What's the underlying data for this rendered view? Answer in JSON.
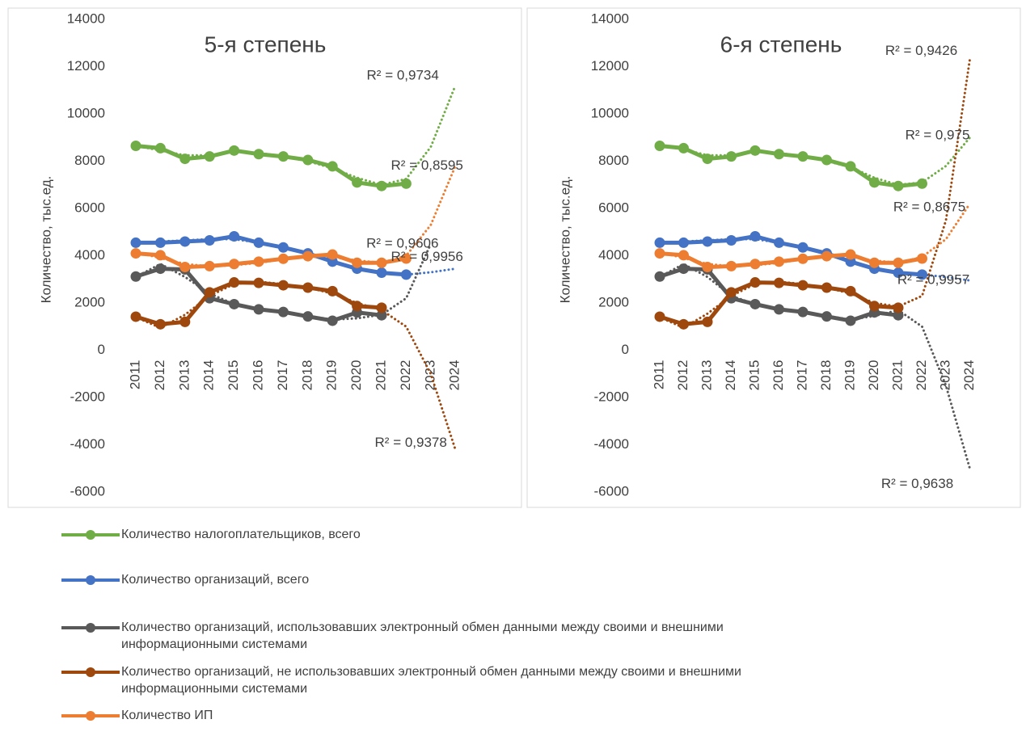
{
  "chart_data": [
    {
      "type": "line",
      "title": "5-я степень",
      "y_label": "Количество, тыс.ед.",
      "categories": [
        "2011",
        "2012",
        "2013",
        "2014",
        "2015",
        "2016",
        "2017",
        "2018",
        "2019",
        "2020",
        "2021",
        "2022",
        "2023",
        "2024"
      ],
      "ylim": [
        -6000,
        14000
      ],
      "yticks": [
        -6000,
        -4000,
        -2000,
        0,
        2000,
        4000,
        6000,
        8000,
        10000,
        12000,
        14000
      ],
      "series": [
        {
          "name": "Количество налогоплательщиков, всего",
          "color": "#70ad47",
          "values": [
            8650,
            8550,
            8100,
            8200,
            8450,
            8300,
            8200,
            8050,
            7780,
            7100,
            6950,
            7050,
            null,
            null
          ]
        },
        {
          "name": "Количество организаций, всего",
          "color": "#4472c4",
          "values": [
            4550,
            4550,
            4600,
            4650,
            4820,
            4550,
            4350,
            4100,
            3750,
            3450,
            3280,
            3200,
            null,
            null
          ]
        },
        {
          "name": "Количество организаций, использовавших электронный обмен данными между своими и внешними информационными системами",
          "color": "#595959",
          "values": [
            3120,
            3450,
            3420,
            2200,
            1950,
            1730,
            1620,
            1430,
            1250,
            1600,
            1480,
            null,
            null,
            null
          ]
        },
        {
          "name": "Количество организаций, не использовавших электронный обмен данными между своими и внешними информационными системами",
          "color": "#9e480e",
          "values": [
            1420,
            1100,
            1200,
            2450,
            2870,
            2850,
            2750,
            2650,
            2500,
            1870,
            1800,
            null,
            null,
            null
          ]
        },
        {
          "name": "Количество ИП",
          "color": "#ed7d31",
          "values": [
            4100,
            4020,
            3520,
            3560,
            3650,
            3750,
            3870,
            3980,
            4050,
            3700,
            3700,
            3880,
            null,
            null
          ]
        }
      ],
      "trendlines": [
        {
          "label": "R² = 0,9734",
          "values": [
            8650,
            8450,
            8250,
            8250,
            8400,
            8350,
            8200,
            8000,
            7700,
            7300,
            7000,
            7250,
            8600,
            11200
          ]
        },
        {
          "label": "R² = 0,9956",
          "values": [
            4500,
            4600,
            4650,
            4700,
            4700,
            4550,
            4350,
            4050,
            3750,
            3450,
            3250,
            3200,
            3300,
            3450
          ]
        },
        {
          "label": "R² = 0,9606",
          "values": [
            3100,
            3650,
            3100,
            2400,
            1950,
            1750,
            1620,
            1450,
            1300,
            1350,
            1500,
            2200,
            4500,
            null
          ]
        },
        {
          "label": "R² = 0,9378",
          "values": [
            1400,
            950,
            1500,
            2300,
            2800,
            2900,
            2800,
            2650,
            2400,
            2000,
            1700,
            1000,
            -1000,
            -4200
          ]
        },
        {
          "label": "R² = 0,8595",
          "values": [
            4150,
            3900,
            3650,
            3550,
            3600,
            3700,
            3850,
            3950,
            3950,
            3800,
            3700,
            4000,
            5300,
            7800
          ]
        }
      ]
    },
    {
      "type": "line",
      "title": "6-я степень",
      "y_label": "Количество, тыс.ед.",
      "categories": [
        "2011",
        "2012",
        "2013",
        "2014",
        "2015",
        "2016",
        "2017",
        "2018",
        "2019",
        "2020",
        "2021",
        "2022",
        "2023",
        "2024"
      ],
      "ylim": [
        -6000,
        14000
      ],
      "yticks": [
        -6000,
        -4000,
        -2000,
        0,
        2000,
        4000,
        6000,
        8000,
        10000,
        12000,
        14000
      ],
      "series": [
        {
          "name": "Количество налогоплательщиков, всего",
          "color": "#70ad47",
          "values": [
            8650,
            8550,
            8100,
            8200,
            8450,
            8300,
            8200,
            8050,
            7780,
            7100,
            6950,
            7050,
            null,
            null
          ]
        },
        {
          "name": "Количество организаций, всего",
          "color": "#4472c4",
          "values": [
            4550,
            4550,
            4600,
            4650,
            4820,
            4550,
            4350,
            4100,
            3750,
            3450,
            3280,
            3200,
            null,
            null
          ]
        },
        {
          "name": "Количество организаций, использовавших электронный обмен данными между своими и внешними информационными системами",
          "color": "#595959",
          "values": [
            3120,
            3450,
            3420,
            2200,
            1950,
            1730,
            1620,
            1430,
            1250,
            1600,
            1480,
            null,
            null,
            null
          ]
        },
        {
          "name": "Количество организаций, не использовавших электронный обмен данными между своими и внешними информационными системами",
          "color": "#9e480e",
          "values": [
            1420,
            1100,
            1200,
            2450,
            2870,
            2850,
            2750,
            2650,
            2500,
            1870,
            1800,
            null,
            null,
            null
          ]
        },
        {
          "name": "Количество ИП",
          "color": "#ed7d31",
          "values": [
            4100,
            4020,
            3520,
            3560,
            3650,
            3750,
            3870,
            3980,
            4050,
            3700,
            3700,
            3880,
            null,
            null
          ]
        }
      ],
      "trendlines": [
        {
          "label": "R² = 0,975",
          "values": [
            8650,
            8500,
            8250,
            8250,
            8400,
            8350,
            8200,
            8000,
            7750,
            7300,
            7000,
            7100,
            7800,
            9000
          ]
        },
        {
          "label": "R² = 0,9957",
          "values": [
            4500,
            4600,
            4650,
            4700,
            4700,
            4550,
            4350,
            4050,
            3750,
            3450,
            3250,
            3200,
            3100,
            2950
          ]
        },
        {
          "label": "R² = 0,9638",
          "values": [
            3100,
            3650,
            3100,
            2300,
            1950,
            1750,
            1600,
            1450,
            1300,
            1450,
            1700,
            1000,
            -1500,
            -5000
          ]
        },
        {
          "label": "R² = 0,9426",
          "values": [
            1400,
            950,
            1550,
            2300,
            2800,
            2900,
            2800,
            2650,
            2400,
            2000,
            1850,
            2300,
            5500,
            12300
          ]
        },
        {
          "label": "R² = 0,8675",
          "values": [
            4150,
            3900,
            3650,
            3550,
            3600,
            3700,
            3850,
            3950,
            3950,
            3800,
            3700,
            3950,
            4700,
            6200
          ]
        }
      ]
    }
  ]
}
